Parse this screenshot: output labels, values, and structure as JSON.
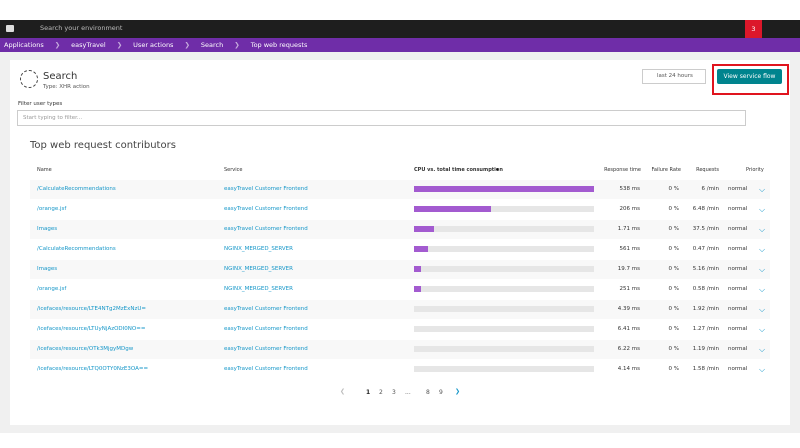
{
  "topbar": {
    "search_placeholder": "Search your environment",
    "badge": "3"
  },
  "breadcrumb": [
    "Applications",
    "easyTravel",
    "User actions",
    "Search",
    "Top web requests"
  ],
  "header": {
    "title": "Search",
    "subtitle": "Type: XHR action",
    "timeframe": "last 24 hours",
    "button": "View service flow"
  },
  "filter": {
    "label": "Filter user types",
    "placeholder": "Start typing to filter..."
  },
  "table": {
    "title": "Top web request contributors",
    "columns": [
      "Name",
      "Service",
      "CPU vs. total time consumption",
      "Response time",
      "Failure Rate",
      "Requests",
      "Priority"
    ],
    "rows": [
      {
        "name": "/CalculateRecommendations",
        "service": "easyTravel Customer Frontend",
        "cpu": 100,
        "response_time": "538 ms",
        "failure_rate": "0 %",
        "requests": "6 /min",
        "priority": "normal"
      },
      {
        "name": "/orange.jsf",
        "service": "easyTravel Customer Frontend",
        "cpu": 43,
        "response_time": "206 ms",
        "failure_rate": "0 %",
        "requests": "6.48 /min",
        "priority": "normal"
      },
      {
        "name": "Images",
        "service": "easyTravel Customer Frontend",
        "cpu": 11,
        "response_time": "1.71 ms",
        "failure_rate": "0 %",
        "requests": "37.5 /min",
        "priority": "normal"
      },
      {
        "name": "/CalculateRecommendations",
        "service": "NGINX_MERGED_SERVER",
        "cpu": 8,
        "response_time": "561 ms",
        "failure_rate": "0 %",
        "requests": "0.47 /min",
        "priority": "normal"
      },
      {
        "name": "Images",
        "service": "NGINX_MERGED_SERVER",
        "cpu": 4,
        "response_time": "19.7 ms",
        "failure_rate": "0 %",
        "requests": "5.16 /min",
        "priority": "normal"
      },
      {
        "name": "/orange.jsf",
        "service": "NGINX_MERGED_SERVER",
        "cpu": 4,
        "response_time": "251 ms",
        "failure_rate": "0 %",
        "requests": "0.58 /min",
        "priority": "normal"
      },
      {
        "name": "/icefaces/resource/LTE4NTg2MzExNzU=",
        "service": "easyTravel Customer Frontend",
        "cpu": 0,
        "response_time": "4.39 ms",
        "failure_rate": "0 %",
        "requests": "1.92 /min",
        "priority": "normal"
      },
      {
        "name": "/icefaces/resource/LTUyNjAzODI0NO==",
        "service": "easyTravel Customer Frontend",
        "cpu": 0,
        "response_time": "6.41 ms",
        "failure_rate": "0 %",
        "requests": "1.27 /min",
        "priority": "normal"
      },
      {
        "name": "/icefaces/resource/OTk3MjgyMDgw",
        "service": "easyTravel Customer Frontend",
        "cpu": 0,
        "response_time": "6.22 ms",
        "failure_rate": "0 %",
        "requests": "1.19 /min",
        "priority": "normal"
      },
      {
        "name": "/icefaces/resource/LTQ0OTY0NzE3OA==",
        "service": "easyTravel Customer Frontend",
        "cpu": 0,
        "response_time": "4.14 ms",
        "failure_rate": "0 %",
        "requests": "1.58 /min",
        "priority": "normal"
      }
    ]
  },
  "pagination": [
    "1",
    "2",
    "3",
    "...",
    "8",
    "9"
  ]
}
